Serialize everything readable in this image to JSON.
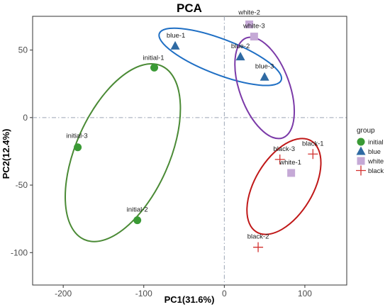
{
  "chart_data": {
    "type": "scatter",
    "title": "PCA",
    "xlabel": "PC1(31.6%)",
    "ylabel": "PC2(12.4%)",
    "xlim": [
      -238,
      152
    ],
    "ylim": [
      -124,
      75
    ],
    "xticks": [
      -200,
      -100,
      0,
      100
    ],
    "yticks": [
      -100,
      -50,
      0,
      50
    ],
    "grid": false,
    "reference_lines": {
      "x": 0,
      "y": 0
    },
    "legend": {
      "title": "group",
      "position": "right",
      "entries": [
        {
          "label": "initial",
          "color": "#3a9a35",
          "marker": "circle"
        },
        {
          "label": "blue",
          "color": "#2f6aa3",
          "marker": "triangle"
        },
        {
          "label": "white",
          "color": "#c5a9d6",
          "marker": "square"
        },
        {
          "label": "black",
          "color": "#d3302e",
          "marker": "cross"
        }
      ]
    },
    "series": [
      {
        "name": "initial",
        "color": "#3a9a35",
        "marker": "circle",
        "points": [
          {
            "label": "initial-1",
            "x": -87,
            "y": 37
          },
          {
            "label": "initial-2",
            "x": -108,
            "y": -76
          },
          {
            "label": "initial-3",
            "x": -182,
            "y": -22
          }
        ]
      },
      {
        "name": "blue",
        "color": "#2f6aa3",
        "marker": "triangle",
        "points": [
          {
            "label": "blue-1",
            "x": -61,
            "y": 53
          },
          {
            "label": "blue-2",
            "x": 20,
            "y": 45
          },
          {
            "label": "blue-3",
            "x": 50,
            "y": 30
          }
        ]
      },
      {
        "name": "white",
        "color": "#c5a9d6",
        "marker": "square",
        "points": [
          {
            "label": "white-1",
            "x": 83,
            "y": -41
          },
          {
            "label": "white-2",
            "x": 31,
            "y": 69
          },
          {
            "label": "white-3",
            "x": 37,
            "y": 60
          }
        ]
      },
      {
        "name": "black",
        "color": "#d3302e",
        "marker": "cross",
        "points": [
          {
            "label": "black-1",
            "x": 110,
            "y": -27
          },
          {
            "label": "black-2",
            "x": 42,
            "y": -96
          },
          {
            "label": "black-3",
            "x": 69,
            "y": -31
          }
        ]
      }
    ],
    "ellipses": [
      {
        "group": "initial",
        "color": "#4a8a35",
        "cx": -126,
        "cy": -26,
        "rx": 118,
        "ry": 58,
        "angle": 66
      },
      {
        "group": "blue",
        "color": "#1f6fc4",
        "cx": -5,
        "cy": 45,
        "rx": 81,
        "ry": 22,
        "angle": -21
      },
      {
        "group": "white",
        "color": "#7b3aa8",
        "cx": 50,
        "cy": 22,
        "rx": 66,
        "ry": 31,
        "angle": -70
      },
      {
        "group": "black",
        "color": "#c01818",
        "cx": 74,
        "cy": -51,
        "rx": 66,
        "ry": 36,
        "angle": 59
      }
    ]
  }
}
